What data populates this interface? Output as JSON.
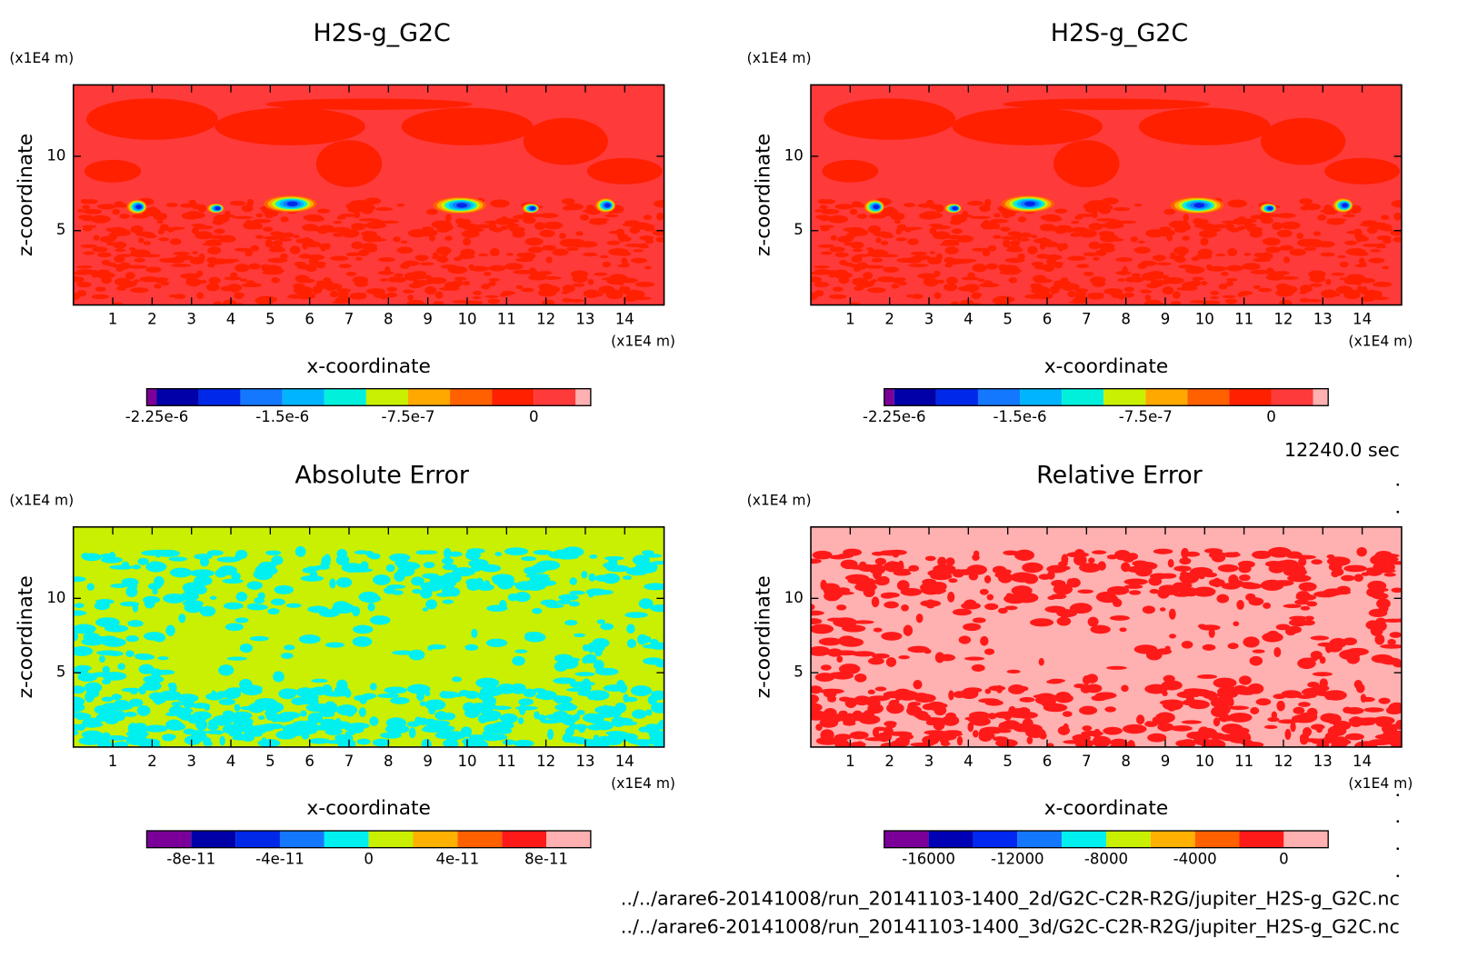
{
  "chart_data": [
    {
      "type": "contour",
      "title": "H2S-g_G2C",
      "x_label": "x-coordinate",
      "y_label": "z-coordinate",
      "x_unit": "(x1E4 m)",
      "y_unit": "(x1E4 m)",
      "xlim": [
        0,
        15
      ],
      "ylim": [
        0,
        14.8
      ],
      "xticks": [
        1,
        2,
        3,
        4,
        5,
        6,
        7,
        8,
        9,
        10,
        11,
        12,
        13,
        14
      ],
      "yticks": [
        5,
        10
      ],
      "colorbar": {
        "lim": [
          -2.31e-06,
          3.4e-07
        ],
        "bounds": [
          -2.25e-06,
          -2e-06,
          -1.75e-06,
          -1.5e-06,
          -1.25e-06,
          -1e-06,
          -7.5e-07,
          -5e-07,
          -2.5e-07,
          0,
          2.5e-07
        ],
        "colors": [
          "#7b0099",
          "#0000a8",
          "#0028e8",
          "#1478ff",
          "#00b4ff",
          "#00f0dc",
          "#c8f000",
          "#ffa800",
          "#ff6000",
          "#ff2000",
          "#ff3a3a",
          "#ffb0b0"
        ],
        "ticks": [
          {
            "value": -2.25e-06,
            "label": "-2.25e-6"
          },
          {
            "value": -1.5e-06,
            "label": "-1.5e-6"
          },
          {
            "value": -7.5e-07,
            "label": "-7.5e-7"
          },
          0
        ]
      }
    },
    {
      "type": "contour",
      "title": "H2S-g_G2C",
      "x_label": "x-coordinate",
      "y_label": "z-coordinate",
      "x_unit": "(x1E4 m)",
      "y_unit": "(x1E4 m)",
      "xlim": [
        0,
        15
      ],
      "ylim": [
        0,
        14.8
      ],
      "xticks": [
        1,
        2,
        3,
        4,
        5,
        6,
        7,
        8,
        9,
        10,
        11,
        12,
        13,
        14
      ],
      "yticks": [
        5,
        10
      ],
      "colorbar": {
        "lim": [
          -2.31e-06,
          3.4e-07
        ],
        "bounds": [
          -2.25e-06,
          -2e-06,
          -1.75e-06,
          -1.5e-06,
          -1.25e-06,
          -1e-06,
          -7.5e-07,
          -5e-07,
          -2.5e-07,
          0,
          2.5e-07
        ],
        "colors": [
          "#7b0099",
          "#0000a8",
          "#0028e8",
          "#1478ff",
          "#00b4ff",
          "#00f0dc",
          "#c8f000",
          "#ffa800",
          "#ff6000",
          "#ff2000",
          "#ff3a3a",
          "#ffb0b0"
        ],
        "ticks": [
          {
            "value": -2.25e-06,
            "label": "-2.25e-6"
          },
          {
            "value": -1.5e-06,
            "label": "-1.5e-6"
          },
          {
            "value": -7.5e-07,
            "label": "-7.5e-7"
          },
          0
        ]
      }
    },
    {
      "type": "contour",
      "title": "Absolute Error",
      "x_label": "x-coordinate",
      "y_label": "z-coordinate",
      "x_unit": "(x1E4 m)",
      "y_unit": "(x1E4 m)",
      "xlim": [
        0,
        15
      ],
      "ylim": [
        0,
        14.8
      ],
      "xticks": [
        1,
        2,
        3,
        4,
        5,
        6,
        7,
        8,
        9,
        10,
        11,
        12,
        13,
        14
      ],
      "yticks": [
        5,
        10
      ],
      "colorbar": {
        "lim": [
          -1e-10,
          1e-10
        ],
        "bounds": [
          -8e-11,
          -6e-11,
          -4e-11,
          -2e-11,
          0,
          2e-11,
          4e-11,
          6e-11,
          8e-11
        ],
        "colors": [
          "#7b0099",
          "#0000a8",
          "#0028e8",
          "#1478ff",
          "#00f0f0",
          "#c8f000",
          "#ffb000",
          "#ff6000",
          "#ff1a1a",
          "#ffb0b0"
        ],
        "ticks": [
          {
            "value": -8e-11,
            "label": "-8e-11"
          },
          {
            "value": -4e-11,
            "label": "-4e-11"
          },
          0,
          {
            "value": 4e-11,
            "label": "4e-11"
          },
          {
            "value": 8e-11,
            "label": "8e-11"
          }
        ]
      }
    },
    {
      "type": "contour",
      "title": "Relative Error",
      "x_label": "x-coordinate",
      "y_label": "z-coordinate",
      "x_unit": "(x1E4 m)",
      "y_unit": "(x1E4 m)",
      "xlim": [
        0,
        15
      ],
      "ylim": [
        0,
        14.8
      ],
      "xticks": [
        1,
        2,
        3,
        4,
        5,
        6,
        7,
        8,
        9,
        10,
        11,
        12,
        13,
        14
      ],
      "yticks": [
        5,
        10
      ],
      "colorbar": {
        "lim": [
          -18000,
          2000
        ],
        "bounds": [
          -16000,
          -14000,
          -12000,
          -10000,
          -8000,
          -6000,
          -4000,
          -2000,
          0
        ],
        "colors": [
          "#7b0099",
          "#0000b4",
          "#0028f0",
          "#1478ff",
          "#00f0f0",
          "#c8f000",
          "#ffb000",
          "#ff6000",
          "#ff1a1a",
          "#ffb0b0"
        ],
        "ticks": [
          -16000,
          -12000,
          -8000,
          -4000,
          0
        ]
      }
    }
  ],
  "time_label": "12240.0 sec",
  "files": [
    "../../arare6-20141008/run_20141103-1400_2d/G2C-C2R-R2G/jupiter_H2S-g_G2C.nc",
    "../../arare6-20141008/run_20141103-1400_3d/G2C-C2R-R2G/jupiter_H2S-g_G2C.nc"
  ]
}
